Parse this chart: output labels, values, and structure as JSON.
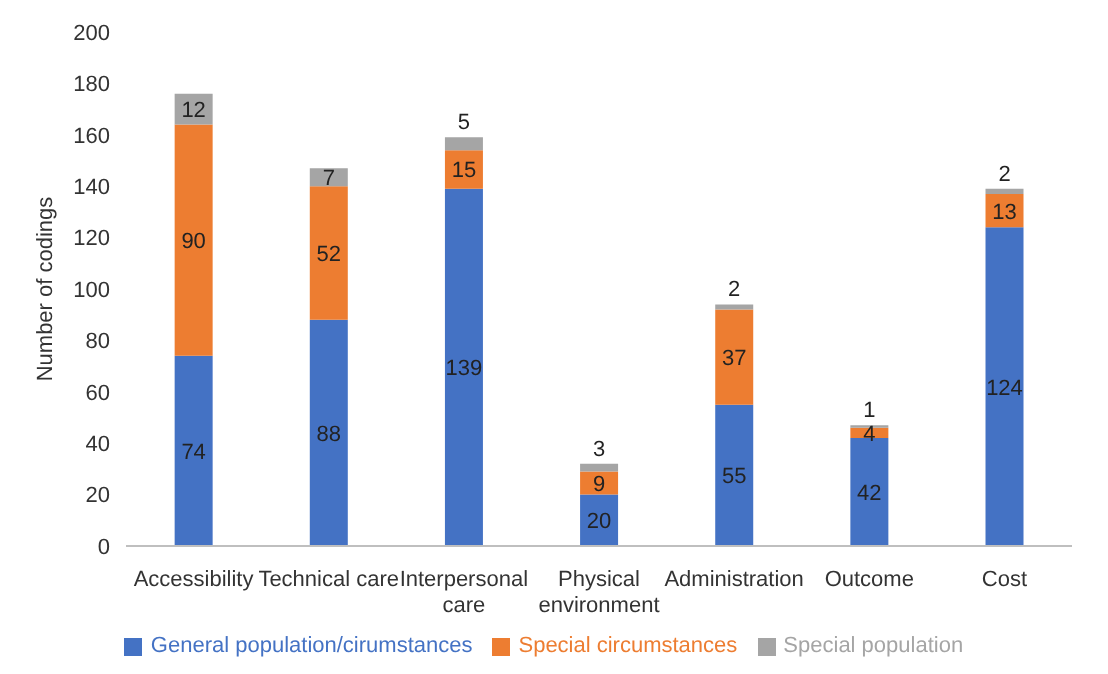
{
  "chart_data": {
    "type": "bar",
    "stacked": true,
    "ylabel": "Number of codings",
    "categories": [
      "Accessibility",
      "Technical care",
      "Interpersonal care",
      "Physical environment",
      "Administration",
      "Outcome",
      "Cost"
    ],
    "series": [
      {
        "name": "General population/cirumstances",
        "color": "#4472c4",
        "values": [
          74,
          88,
          139,
          20,
          55,
          42,
          124
        ]
      },
      {
        "name": "Special circumstances",
        "color": "#ed7d31",
        "values": [
          90,
          52,
          15,
          9,
          37,
          4,
          13
        ]
      },
      {
        "name": "Special population",
        "color": "#a5a5a5",
        "values": [
          12,
          7,
          5,
          3,
          2,
          1,
          2
        ]
      }
    ],
    "ylim": [
      0,
      200
    ],
    "yticks": [
      0,
      20,
      40,
      60,
      80,
      100,
      120,
      140,
      160,
      180,
      200
    ],
    "grid": false,
    "legend": "bottom",
    "data_labels": true
  }
}
